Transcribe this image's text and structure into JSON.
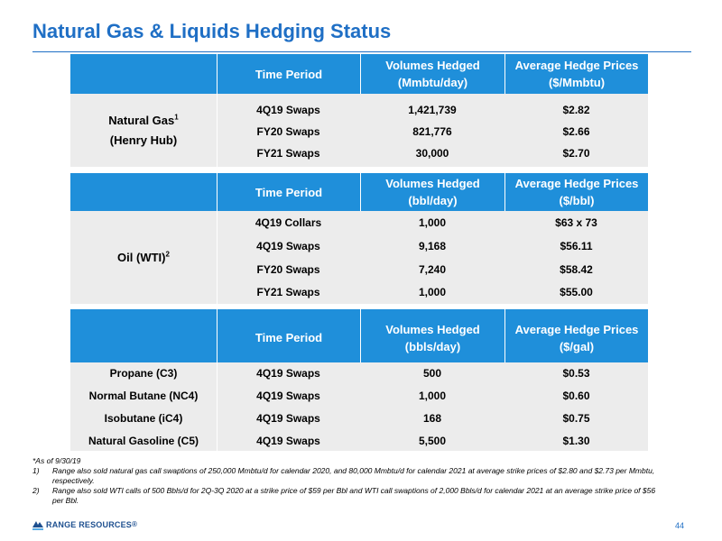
{
  "title": "Natural Gas & Liquids Hedging Status",
  "colors": {
    "accent": "#1f6fc5",
    "header_fill": "#1f8fda",
    "body_fill": "#ececec"
  },
  "gas": {
    "headers": [
      "Time Period",
      "Volumes Hedged",
      "(Mmbtu/day)",
      "Average Hedge Prices",
      "($/Mmbtu)"
    ],
    "label_line1": "Natural Gas",
    "label_sup": "1",
    "label_line2": "(Henry Hub)",
    "rows": [
      {
        "period": "4Q19 Swaps",
        "volume": "1,421,739",
        "price": "$2.82"
      },
      {
        "period": "FY20 Swaps",
        "volume": "821,776",
        "price": "$2.66"
      },
      {
        "period": "FY21 Swaps",
        "volume": "30,000",
        "price": "$2.70"
      }
    ]
  },
  "oil": {
    "headers": [
      "Time Period",
      "Volumes Hedged",
      "(bbl/day)",
      "Average Hedge Prices",
      "($/bbl)"
    ],
    "label": "Oil (WTI)",
    "label_sup": "2",
    "rows": [
      {
        "period": "4Q19 Collars",
        "volume": "1,000",
        "price": "$63 x 73"
      },
      {
        "period": "4Q19 Swaps",
        "volume": "9,168",
        "price": "$56.11"
      },
      {
        "period": "FY20 Swaps",
        "volume": "7,240",
        "price": "$58.42"
      },
      {
        "period": "FY21 Swaps",
        "volume": "1,000",
        "price": "$55.00"
      }
    ]
  },
  "ngl": {
    "headers": [
      "Time Period",
      "Volumes Hedged",
      "(bbls/day)",
      "Average Hedge Prices",
      "($/gal)"
    ],
    "rows": [
      {
        "product": "Propane (C3)",
        "period": "4Q19 Swaps",
        "volume": "500",
        "price": "$0.53"
      },
      {
        "product": "Normal Butane (NC4)",
        "period": "4Q19 Swaps",
        "volume": "1,000",
        "price": "$0.60"
      },
      {
        "product": "Isobutane (iC4)",
        "period": "4Q19 Swaps",
        "volume": "168",
        "price": "$0.75"
      },
      {
        "product": "Natural Gasoline (C5)",
        "period": "4Q19 Swaps",
        "volume": "5,500",
        "price": "$1.30"
      }
    ]
  },
  "footnotes": {
    "asof": "*As of 9/30/19",
    "items": [
      {
        "num": "1)",
        "text": "Range also sold natural gas call swaptions of 250,000 Mmbtu/d for calendar 2020, and 80,000 Mmbtu/d for calendar 2021 at average strike prices of $2.80 and $2.73 per Mmbtu, respectively."
      },
      {
        "num": "2)",
        "text": "Range also sold WTI calls of 500 Bbls/d for 2Q-3Q 2020 at a strike price of $59 per Bbl and WTI call swaptions of 2,000 Bbls/d for calendar 2021 at an average strike price of $56 per Bbl."
      }
    ]
  },
  "logo": {
    "text": "RANGE RESOURCES",
    "mark": "®",
    "icon": "range-resources-logo-icon"
  },
  "page_number": "44"
}
